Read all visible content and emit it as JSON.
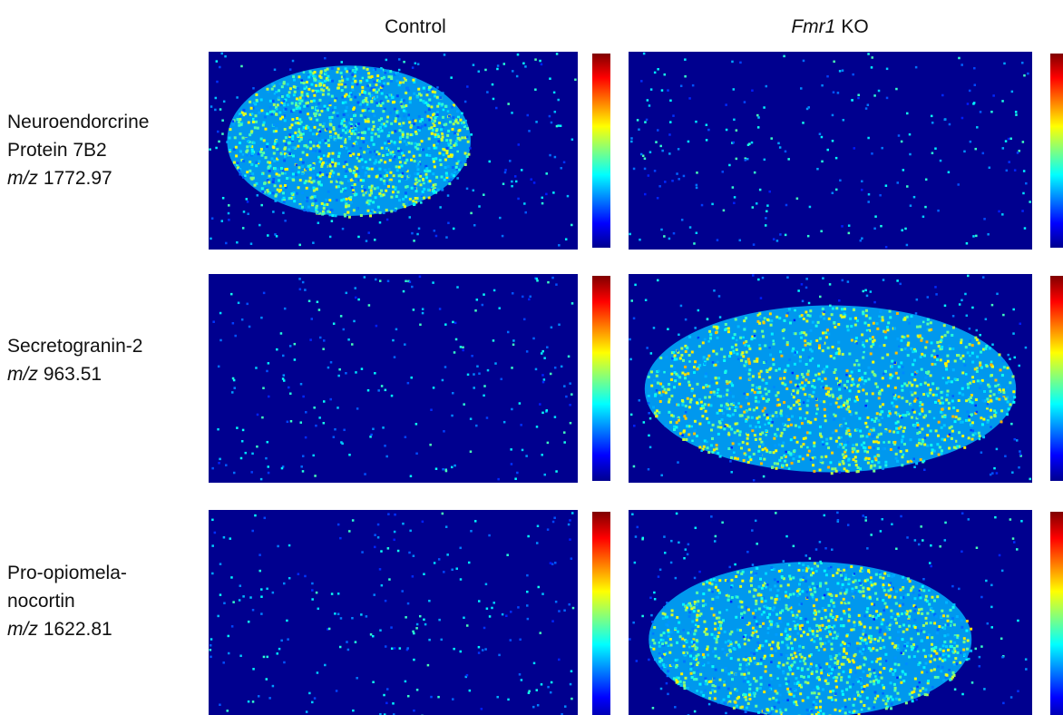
{
  "columns": [
    {
      "title": "Control"
    },
    {
      "title_italic": "Fmr1",
      "title_rest": "KO"
    }
  ],
  "rows": [
    {
      "lines": [
        "Neuroendorcrine",
        "Protein 7B2"
      ],
      "mz_label": "m/z",
      "mz": "1772.97"
    },
    {
      "lines": [
        "Secretogranin-2"
      ],
      "mz_label": "m/z",
      "mz": "963.51"
    },
    {
      "lines": [
        "Pro-opiomela-",
        "nocortin"
      ],
      "mz_label": "m/z",
      "mz": "1622.81"
    }
  ]
}
